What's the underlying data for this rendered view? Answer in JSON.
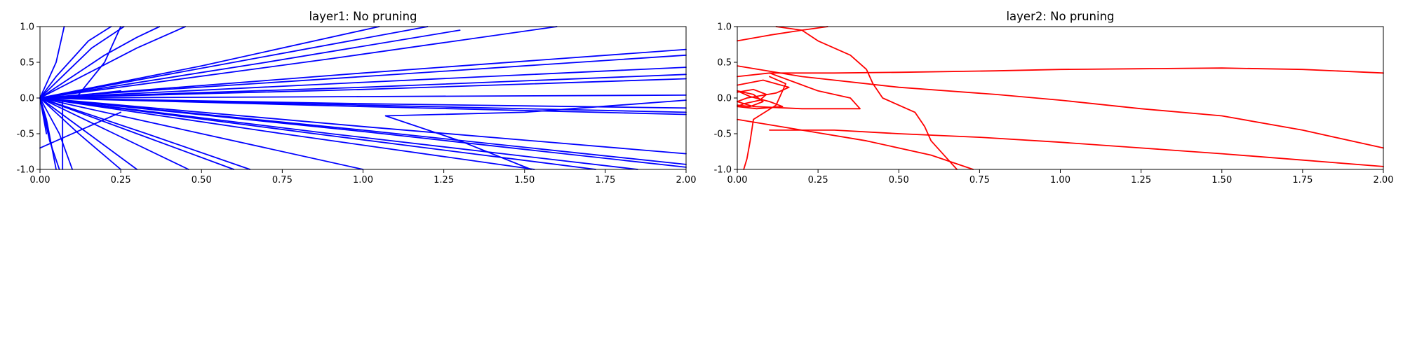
{
  "chart_data": [
    {
      "type": "line",
      "title": "layer1: No pruning",
      "xlabel": "",
      "ylabel": "",
      "xlim": [
        0,
        2
      ],
      "ylim": [
        -1,
        1
      ],
      "xticks": [
        "0.00",
        "0.25",
        "0.50",
        "0.75",
        "1.00",
        "1.25",
        "1.50",
        "1.75",
        "2.00"
      ],
      "yticks": [
        "-1.0",
        "-0.5",
        "0.0",
        "0.5",
        "1.0"
      ],
      "grid": false,
      "legend": "none",
      "color": "#0000ff",
      "series": [
        {
          "x": [
            0,
            0.05,
            0.075
          ],
          "y": [
            0,
            0.5,
            1.0
          ]
        },
        {
          "x": [
            0,
            0.05,
            0.1,
            0.15,
            0.22
          ],
          "y": [
            0,
            0.3,
            0.55,
            0.8,
            1.0
          ]
        },
        {
          "x": [
            0,
            0.08,
            0.16,
            0.26
          ],
          "y": [
            0,
            0.35,
            0.7,
            1.0
          ]
        },
        {
          "x": [
            0,
            0.1,
            0.2,
            0.3,
            0.37
          ],
          "y": [
            0,
            0.3,
            0.6,
            0.85,
            1.0
          ]
        },
        {
          "x": [
            0,
            0.15,
            0.3,
            0.45
          ],
          "y": [
            0,
            0.35,
            0.7,
            1.0
          ]
        },
        {
          "x": [
            0.12,
            0.2,
            0.23,
            0.25
          ],
          "y": [
            0.05,
            0.5,
            0.8,
            1.0
          ]
        },
        {
          "x": [
            0,
            0.5,
            1.05
          ],
          "y": [
            0,
            0.45,
            1.0
          ]
        },
        {
          "x": [
            0,
            0.6,
            1.2
          ],
          "y": [
            0,
            0.5,
            1.0
          ]
        },
        {
          "x": [
            0,
            0.7,
            1.3
          ],
          "y": [
            0,
            0.5,
            0.95
          ]
        },
        {
          "x": [
            0,
            0.9,
            1.6
          ],
          "y": [
            0,
            0.55,
            1.0
          ]
        },
        {
          "x": [
            0,
            1.0,
            2.0
          ],
          "y": [
            0,
            0.35,
            0.68
          ]
        },
        {
          "x": [
            0.15,
            1.0,
            2.0
          ],
          "y": [
            0.05,
            0.3,
            0.6
          ]
        },
        {
          "x": [
            0,
            1.0,
            2.0
          ],
          "y": [
            0,
            0.22,
            0.43
          ]
        },
        {
          "x": [
            0,
            1.0,
            2.0
          ],
          "y": [
            0,
            0.15,
            0.33
          ]
        },
        {
          "x": [
            0,
            1.0,
            2.0
          ],
          "y": [
            0,
            0.12,
            0.27
          ]
        },
        {
          "x": [
            0,
            1.0,
            2.0
          ],
          "y": [
            0,
            0.02,
            0.04
          ]
        },
        {
          "x": [
            0,
            1.0,
            2.0
          ],
          "y": [
            0,
            -0.08,
            -0.14
          ]
        },
        {
          "x": [
            0,
            1.0,
            2.0
          ],
          "y": [
            0,
            -0.1,
            -0.2
          ]
        },
        {
          "x": [
            1.07,
            1.5,
            2.0
          ],
          "y": [
            -0.25,
            -0.2,
            -0.03
          ]
        },
        {
          "x": [
            0,
            1.0,
            2.0
          ],
          "y": [
            0,
            -0.12,
            -0.23
          ]
        },
        {
          "x": [
            0,
            1.0,
            2.0
          ],
          "y": [
            0,
            -0.4,
            -0.78
          ]
        },
        {
          "x": [
            0,
            1.0,
            2.0
          ],
          "y": [
            0,
            -0.45,
            -0.93
          ]
        },
        {
          "x": [
            0,
            1.0,
            2.0
          ],
          "y": [
            0,
            -0.47,
            -0.97
          ]
        },
        {
          "x": [
            0,
            0.9,
            1.85
          ],
          "y": [
            0,
            -0.5,
            -1.0
          ]
        },
        {
          "x": [
            0,
            0.85,
            1.72
          ],
          "y": [
            0,
            -0.5,
            -1.0
          ]
        },
        {
          "x": [
            0,
            0.75,
            1.53
          ],
          "y": [
            0,
            -0.5,
            -1.0
          ]
        },
        {
          "x": [
            1.07,
            1.3,
            1.52
          ],
          "y": [
            -0.25,
            -0.6,
            -1.0
          ]
        },
        {
          "x": [
            0,
            0.5,
            1.0
          ],
          "y": [
            0,
            -0.5,
            -1.0
          ]
        },
        {
          "x": [
            0,
            0.33,
            0.65
          ],
          "y": [
            0,
            -0.5,
            -1.0
          ]
        },
        {
          "x": [
            0,
            0.3,
            0.6
          ],
          "y": [
            0,
            -0.5,
            -1.0
          ]
        },
        {
          "x": [
            0,
            0.23,
            0.46
          ],
          "y": [
            0,
            -0.5,
            -1.0
          ]
        },
        {
          "x": [
            0,
            0.15,
            0.3
          ],
          "y": [
            0,
            -0.5,
            -1.0
          ]
        },
        {
          "x": [
            0,
            0.12,
            0.25
          ],
          "y": [
            0,
            -0.5,
            -1.0
          ]
        },
        {
          "x": [
            0,
            0.06,
            0.1
          ],
          "y": [
            0,
            -0.5,
            -1.0
          ]
        },
        {
          "x": [
            0,
            0.03,
            0.06
          ],
          "y": [
            0,
            -0.6,
            -1.0
          ]
        },
        {
          "x": [
            0.07,
            0.07,
            0.07
          ],
          "y": [
            -0.05,
            -0.5,
            -1.0
          ]
        },
        {
          "x": [
            0,
            0.02,
            0.05
          ],
          "y": [
            0,
            -0.3,
            -1.0
          ]
        },
        {
          "x": [
            0,
            0.02
          ],
          "y": [
            0,
            -0.5
          ]
        },
        {
          "x": [
            0,
            0.04
          ],
          "y": [
            0,
            -0.75
          ]
        },
        {
          "x": [
            0,
            0.25
          ],
          "y": [
            -0.7,
            -0.2
          ]
        },
        {
          "x": [
            0.1,
            0.15,
            0.25
          ],
          "y": [
            0,
            0.05,
            0.1
          ]
        }
      ]
    },
    {
      "type": "line",
      "title": "layer2: No pruning",
      "xlabel": "",
      "ylabel": "",
      "xlim": [
        0,
        2
      ],
      "ylim": [
        -1,
        1
      ],
      "xticks": [
        "0.00",
        "0.25",
        "0.50",
        "0.75",
        "1.00",
        "1.25",
        "1.50",
        "1.75",
        "2.00"
      ],
      "yticks": [
        "-1.0",
        "-0.5",
        "0.0",
        "0.5",
        "1.0"
      ],
      "grid": false,
      "legend": "none",
      "color": "#ff0000",
      "series": [
        {
          "x": [
            0,
            0.1,
            0.2,
            0.28
          ],
          "y": [
            0.8,
            0.88,
            0.95,
            1.0
          ]
        },
        {
          "x": [
            0.12,
            0.2,
            0.25,
            0.35,
            0.4,
            0.42,
            0.45,
            0.55,
            0.58,
            0.6,
            0.65,
            0.68
          ],
          "y": [
            1.0,
            0.95,
            0.8,
            0.6,
            0.4,
            0.2,
            0.0,
            -0.2,
            -0.4,
            -0.6,
            -0.85,
            -1.0
          ]
        },
        {
          "x": [
            0.1,
            0.3,
            0.5,
            0.8,
            1.0,
            1.25,
            1.5,
            1.75,
            2.0
          ],
          "y": [
            0.35,
            0.35,
            0.36,
            0.38,
            0.4,
            0.41,
            0.42,
            0.4,
            0.35
          ]
        },
        {
          "x": [
            0,
            0.2,
            0.5,
            0.8,
            1.0,
            1.25,
            1.5,
            1.75,
            2.0
          ],
          "y": [
            0.45,
            0.3,
            0.15,
            0.05,
            -0.03,
            -0.15,
            -0.25,
            -0.45,
            -0.7
          ]
        },
        {
          "x": [
            0.1,
            0.3,
            0.5,
            0.75,
            1.0,
            1.25,
            1.5,
            1.75,
            2.0
          ],
          "y": [
            -0.45,
            -0.45,
            -0.5,
            -0.55,
            -0.62,
            -0.7,
            -0.78,
            -0.87,
            -0.96
          ]
        },
        {
          "x": [
            0,
            0.2,
            0.4,
            0.6,
            0.73
          ],
          "y": [
            -0.3,
            -0.45,
            -0.6,
            -0.8,
            -1.0
          ]
        },
        {
          "x": [
            0,
            0.1,
            0.25,
            0.35,
            0.38,
            0.2,
            0.05,
            0
          ],
          "y": [
            0.3,
            0.35,
            0.1,
            0.0,
            -0.15,
            -0.15,
            -0.12,
            -0.05
          ]
        },
        {
          "x": [
            0.1,
            0.15,
            0.12,
            0.05,
            0.04,
            0.03,
            0.02
          ],
          "y": [
            0.3,
            0.2,
            -0.1,
            -0.3,
            -0.6,
            -0.85,
            -1.0
          ]
        },
        {
          "x": [
            0,
            0.05,
            0.09,
            0.07,
            0.02,
            0,
            0.06,
            0.14,
            0.1,
            0.04,
            0,
            0.05,
            0.08,
            0.04,
            0
          ],
          "y": [
            0.08,
            0.12,
            0.05,
            -0.03,
            -0.08,
            -0.12,
            -0.15,
            -0.12,
            -0.05,
            0.02,
            0.1,
            0.05,
            -0.05,
            -0.12,
            -0.1
          ]
        },
        {
          "x": [
            0,
            0.08,
            0.16,
            0.12,
            0.03,
            0
          ],
          "y": [
            0.18,
            0.25,
            0.15,
            0.07,
            0.0,
            -0.05
          ]
        }
      ]
    }
  ]
}
